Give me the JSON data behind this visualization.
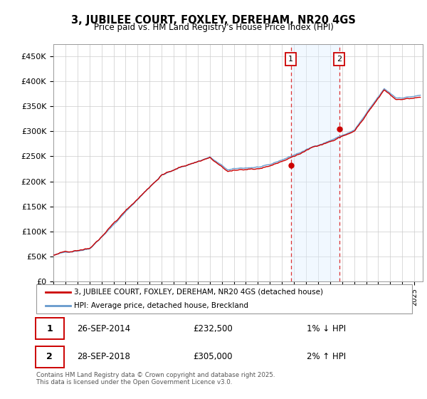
{
  "title": "3, JUBILEE COURT, FOXLEY, DEREHAM, NR20 4GS",
  "subtitle": "Price paid vs. HM Land Registry's House Price Index (HPI)",
  "ylabel_ticks": [
    "£0",
    "£50K",
    "£100K",
    "£150K",
    "£200K",
    "£250K",
    "£300K",
    "£350K",
    "£400K",
    "£450K"
  ],
  "ytick_vals": [
    0,
    50000,
    100000,
    150000,
    200000,
    250000,
    300000,
    350000,
    400000,
    450000
  ],
  "ylim": [
    0,
    475000
  ],
  "xlim_start": 1995.0,
  "xlim_end": 2025.7,
  "sale1_x": 2014.74,
  "sale1_y": 232500,
  "sale2_x": 2018.75,
  "sale2_y": 305000,
  "shade_color": "#ddeeff",
  "vline_color": "#dd3333",
  "hpi_color": "#6699cc",
  "price_color": "#cc0000",
  "legend_label_price": "3, JUBILEE COURT, FOXLEY, DEREHAM, NR20 4GS (detached house)",
  "legend_label_hpi": "HPI: Average price, detached house, Breckland",
  "table_row1": [
    "1",
    "26-SEP-2014",
    "£232,500",
    "1% ↓ HPI"
  ],
  "table_row2": [
    "2",
    "28-SEP-2018",
    "£305,000",
    "2% ↑ HPI"
  ],
  "footnote": "Contains HM Land Registry data © Crown copyright and database right 2025.\nThis data is licensed under the Open Government Licence v3.0.",
  "background_color": "#ffffff",
  "grid_color": "#cccccc"
}
